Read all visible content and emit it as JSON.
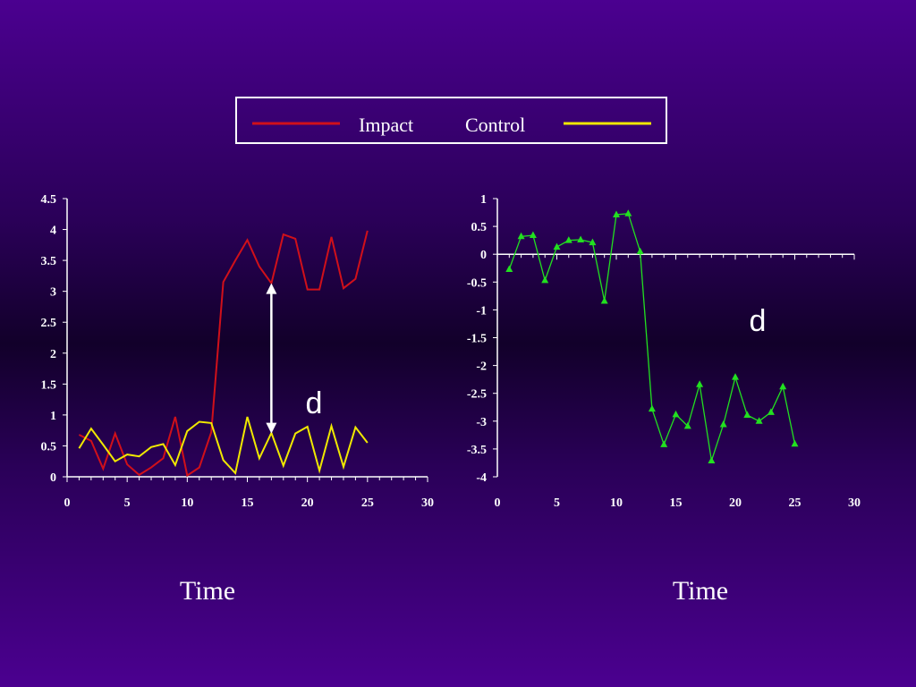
{
  "legend": {
    "items": [
      {
        "label": "Impact",
        "color": "#d0101a"
      },
      {
        "label": "Control",
        "color": "#f0e800"
      }
    ]
  },
  "chart_data": [
    {
      "type": "line",
      "title": "",
      "xlabel": "Time",
      "ylabel": "",
      "xlim": [
        0,
        30
      ],
      "ylim": [
        0,
        4.5
      ],
      "xticks": [
        0,
        5,
        10,
        15,
        20,
        25,
        30
      ],
      "yticks": [
        0,
        0.5,
        1,
        1.5,
        2,
        2.5,
        3,
        3.5,
        4,
        4.5
      ],
      "x": [
        1,
        2,
        3,
        4,
        5,
        6,
        7,
        8,
        9,
        10,
        11,
        12,
        13,
        14,
        15,
        16,
        17,
        18,
        19,
        20,
        21,
        22,
        23,
        24,
        25
      ],
      "series": [
        {
          "name": "Impact",
          "color": "#d0101a",
          "values": [
            0.68,
            0.58,
            0.13,
            0.7,
            0.2,
            0.03,
            0.15,
            0.3,
            0.97,
            0.02,
            0.15,
            0.72,
            3.15,
            3.5,
            3.83,
            3.4,
            3.13,
            3.92,
            3.85,
            3.03,
            3.03,
            3.88,
            3.05,
            3.2,
            3.98
          ]
        },
        {
          "name": "Control",
          "color": "#f0e800",
          "values": [
            0.46,
            0.78,
            0.52,
            0.25,
            0.36,
            0.33,
            0.48,
            0.53,
            0.19,
            0.74,
            0.89,
            0.87,
            0.27,
            0.06,
            0.97,
            0.3,
            0.71,
            0.18,
            0.7,
            0.81,
            0.1,
            0.82,
            0.16,
            0.8,
            0.55
          ]
        }
      ],
      "annotation": {
        "text": "d",
        "arrow_x": 17,
        "arrow_y_low": 0.7,
        "arrow_y_high": 3.13
      }
    },
    {
      "type": "line",
      "title": "",
      "xlabel": "Time",
      "ylabel": "",
      "xlim": [
        0,
        30
      ],
      "ylim": [
        -4,
        1
      ],
      "xticks": [
        0,
        5,
        10,
        15,
        20,
        25,
        30
      ],
      "yticks": [
        -4,
        -3.5,
        -3,
        -2.5,
        -2,
        -1.5,
        -1,
        -0.5,
        0,
        0.5,
        1
      ],
      "x": [
        1,
        2,
        3,
        4,
        5,
        6,
        7,
        8,
        9,
        10,
        11,
        12,
        13,
        14,
        15,
        16,
        17,
        18,
        19,
        20,
        21,
        22,
        23,
        24,
        25
      ],
      "series": [
        {
          "name": "",
          "color": "#22e020",
          "marker": "triangle",
          "values": [
            -0.27,
            0.32,
            0.34,
            -0.47,
            0.13,
            0.25,
            0.26,
            0.21,
            -0.84,
            0.71,
            0.73,
            0.05,
            -2.78,
            -3.42,
            -2.88,
            -3.09,
            -2.34,
            -3.71,
            -3.06,
            -2.21,
            -2.89,
            -3.0,
            -2.84,
            -2.38,
            -3.41
          ]
        }
      ],
      "annotation": {
        "text": "d"
      }
    }
  ]
}
